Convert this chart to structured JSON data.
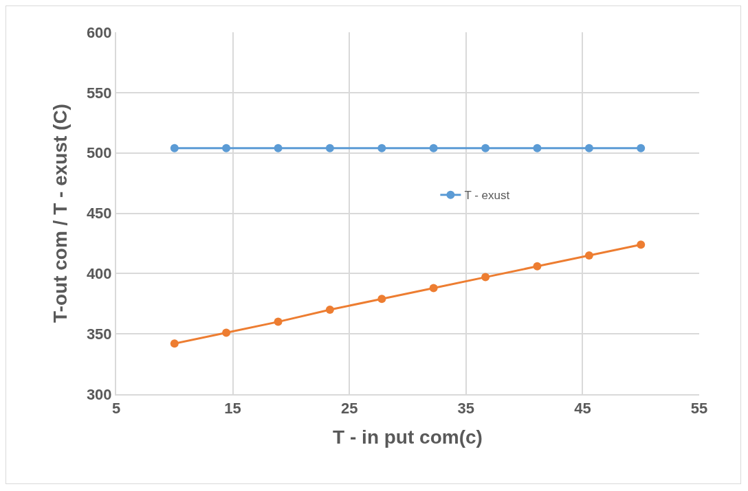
{
  "chart_data": {
    "type": "line",
    "xlabel": "T - in put com(c)",
    "ylabel": "T-out com / T - exust (C)",
    "x": [
      10,
      14.44,
      18.89,
      23.33,
      27.78,
      32.22,
      36.67,
      41.11,
      45.56,
      50
    ],
    "series": [
      {
        "name": "T - exust",
        "color": "#5b9bd5",
        "values": [
          504,
          504,
          504,
          504,
          504,
          504,
          504,
          504,
          504,
          504
        ]
      },
      {
        "color": "#ed7d31",
        "values": [
          342,
          351,
          360,
          370,
          379,
          388,
          397,
          406,
          415,
          424
        ]
      }
    ],
    "xlim": [
      5,
      55
    ],
    "xticks": [
      5,
      15,
      25,
      35,
      45,
      55
    ],
    "ylim": [
      300,
      600
    ],
    "yticks": [
      300,
      350,
      400,
      450,
      500,
      550,
      600
    ],
    "grid": true,
    "legend": "right",
    "marker": "circle",
    "line_style": "solid"
  }
}
